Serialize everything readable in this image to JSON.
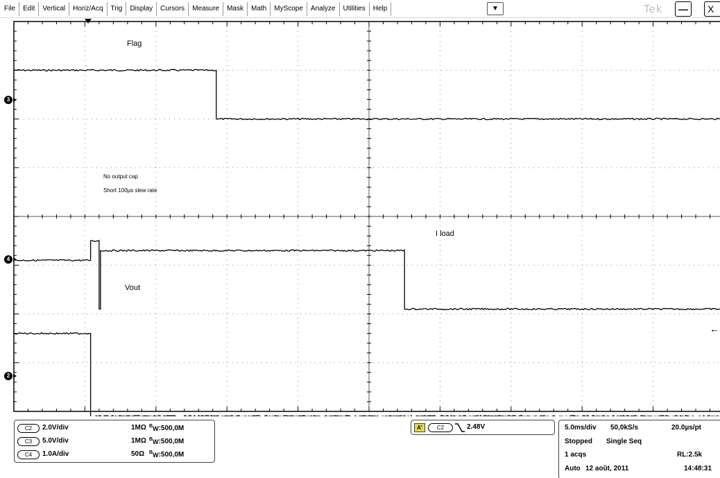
{
  "menu": {
    "items": [
      "File",
      "Edit",
      "Vertical",
      "Horiz/Acq",
      "Trig",
      "Display",
      "Cursors",
      "Measure",
      "Mask",
      "Math",
      "MyScope",
      "Analyze",
      "Utilities",
      "Help"
    ],
    "dropdown_icon": "▼",
    "brand": "Tek",
    "minimize_glyph": "—",
    "close_glyph": "X"
  },
  "display": {
    "background_color": "#ffffff",
    "grid_color": "#8a8a8a",
    "trace_color": "#000000",
    "horizontal_divisions": 10,
    "vertical_divisions": 8,
    "labels": {
      "flag": "Flag",
      "no_output_cap": "No output cap",
      "slew": "Short 100µs slew rate",
      "iload": "I load",
      "vout": "Vout"
    },
    "channel_markers": [
      {
        "channel": "3"
      },
      {
        "channel": "4"
      },
      {
        "channel": "2"
      }
    ]
  },
  "chart_data": {
    "type": "line",
    "xlabel": "",
    "ylabel": "",
    "x_unit": "div",
    "y_unit": "div",
    "xlim": [
      0,
      10
    ],
    "ylim": [
      -4,
      4
    ],
    "grid": true,
    "series": [
      {
        "name": "Flag",
        "x": [
          0,
          2.85,
          2.85,
          10
        ],
        "y": [
          3.0,
          3.0,
          2.0,
          2.0
        ]
      },
      {
        "name": "I load",
        "x": [
          0,
          1.08,
          1.08,
          1.2,
          1.2,
          1.22,
          1.22,
          5.5,
          5.5,
          10
        ],
        "y": [
          -0.9,
          -0.9,
          -0.5,
          -0.5,
          -1.9,
          -1.9,
          -0.7,
          -0.7,
          -1.9,
          -1.9
        ]
      },
      {
        "name": "Vout",
        "x": [
          0,
          1.08,
          1.08,
          10
        ],
        "y": [
          -2.4,
          -2.4,
          -4.1,
          -4.1
        ]
      }
    ]
  },
  "channels": [
    {
      "badge": "C2",
      "scale": "2.0V/div",
      "impedance": "1MΩ",
      "bw": ":500,0M"
    },
    {
      "badge": "C3",
      "scale": "5.0V/div",
      "impedance": "1MΩ",
      "bw": ":500,0M"
    },
    {
      "badge": "C4",
      "scale": "1.0A/div",
      "impedance": "50Ω",
      "bw": ":500,0M"
    }
  ],
  "bw_prefix": "B",
  "bw_sub": "W",
  "trigger": {
    "mode": "A'",
    "source": "C2",
    "level": "2.48V"
  },
  "acquisition": {
    "timebase": "5.0ms/div",
    "sample_rate": "50,0kS/s",
    "resolution": "20.0µs/pt",
    "state": "Stopped",
    "mode": "Single Seq",
    "acqs": "1 acqs",
    "record_length": "RL:2.5k",
    "trigger_mode": "Auto",
    "date": "12 août, 2011",
    "time": "14:48:31"
  }
}
